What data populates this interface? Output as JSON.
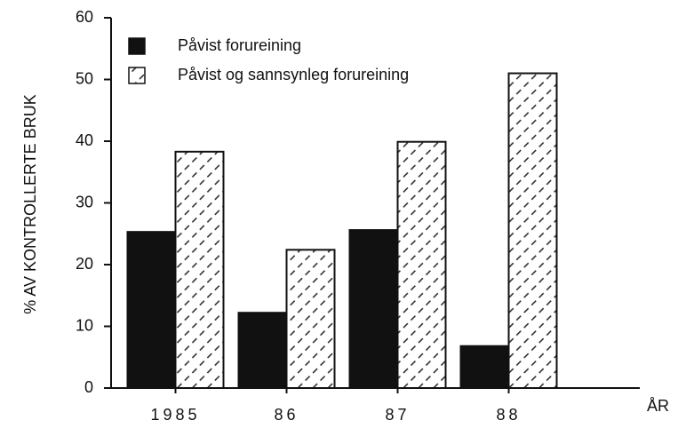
{
  "chart_data": {
    "type": "bar",
    "ylabel": "% AV KONTROLLERTE BRUK",
    "xlabel": "ÅR",
    "categories": [
      "1985",
      "86",
      "87",
      "88"
    ],
    "series": [
      {
        "name": "Påvist forureining",
        "color": "#111111",
        "values": [
          25.3,
          12.2,
          25.6,
          6.8
        ]
      },
      {
        "name": "Påvist og sannsynleg forureining",
        "color": "#222222",
        "pattern": "hatch",
        "values": [
          38.3,
          22.4,
          39.9,
          51
        ]
      }
    ],
    "ylim": [
      0,
      60
    ],
    "yticks": [
      0,
      10,
      20,
      30,
      40,
      50,
      60
    ],
    "legend": "upper left"
  }
}
